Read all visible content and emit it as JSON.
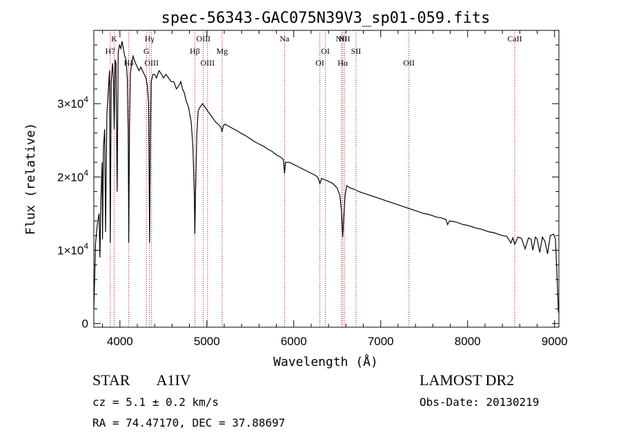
{
  "chart_data": {
    "type": "line",
    "title": "spec-56343-GAC075N39V3_sp01-059.fits",
    "xlabel": "Wavelength (Å)",
    "ylabel": "Flux (relative)",
    "xlim": [
      3700,
      9050
    ],
    "ylim": [
      -500,
      40000
    ],
    "xticks": [
      4000,
      5000,
      6000,
      7000,
      8000,
      9000
    ],
    "xtick_labels": [
      "4000",
      "5000",
      "6000",
      "7000",
      "8000",
      "9000"
    ],
    "yticks": [
      0,
      10000,
      20000,
      30000
    ],
    "ytick_labels": [
      {
        "mant": "0",
        "exp": ""
      },
      {
        "mant": "1×10",
        "exp": "4"
      },
      {
        "mant": "2×10",
        "exp": "4"
      },
      {
        "mant": "3×10",
        "exp": "4"
      }
    ],
    "grid": false,
    "line_color": "#000000",
    "marker_color": "#aa0000",
    "lines": [
      {
        "name": "H7",
        "x": 3889,
        "row": 1
      },
      {
        "name": "K",
        "x": 3934,
        "row": 0
      },
      {
        "name": "Hδ",
        "x": 4102,
        "row": 2
      },
      {
        "name": "Hγ",
        "x": 4341,
        "row": 0
      },
      {
        "name": "G",
        "x": 4305,
        "row": 1
      },
      {
        "name": "OIII",
        "x": 4364,
        "row": 2
      },
      {
        "name": "Hβ",
        "x": 4862,
        "row": 1
      },
      {
        "name": "OIII",
        "x": 4960,
        "row": 0
      },
      {
        "name": "OIII",
        "x": 5008,
        "row": 2
      },
      {
        "name": "Mg",
        "x": 5175,
        "row": 1
      },
      {
        "name": "Na",
        "x": 5894,
        "row": 0
      },
      {
        "name": "OI",
        "x": 6300,
        "row": 2
      },
      {
        "name": "OI",
        "x": 6364,
        "row": 1
      },
      {
        "name": "NII",
        "x": 6548,
        "row": 0
      },
      {
        "name": "Hα",
        "x": 6563,
        "row": 2
      },
      {
        "name": "NII",
        "x": 6583,
        "row": 0
      },
      {
        "name": "SII",
        "x": 6716,
        "row": 1
      },
      {
        "name": "OII",
        "x": 7325,
        "row": 2
      },
      {
        "name": "CaII",
        "x": 8542,
        "row": 0
      }
    ],
    "spectrum": [
      [
        3700,
        2000
      ],
      [
        3720,
        11000
      ],
      [
        3740,
        13500
      ],
      [
        3760,
        15000
      ],
      [
        3770,
        9000
      ],
      [
        3780,
        16500
      ],
      [
        3795,
        22000
      ],
      [
        3800,
        11500
      ],
      [
        3810,
        24000
      ],
      [
        3825,
        26500
      ],
      [
        3835,
        12500
      ],
      [
        3850,
        28500
      ],
      [
        3865,
        31500
      ],
      [
        3880,
        34500
      ],
      [
        3889,
        11000
      ],
      [
        3900,
        33000
      ],
      [
        3915,
        35500
      ],
      [
        3925,
        33500
      ],
      [
        3934,
        26500
      ],
      [
        3945,
        36000
      ],
      [
        3955,
        35500
      ],
      [
        3968,
        18000
      ],
      [
        3980,
        37000
      ],
      [
        3995,
        38000
      ],
      [
        4010,
        37500
      ],
      [
        4025,
        38500
      ],
      [
        4040,
        37500
      ],
      [
        4055,
        36500
      ],
      [
        4070,
        36000
      ],
      [
        4085,
        33500
      ],
      [
        4095,
        26000
      ],
      [
        4102,
        11000
      ],
      [
        4110,
        27000
      ],
      [
        4120,
        34000
      ],
      [
        4135,
        35500
      ],
      [
        4150,
        36500
      ],
      [
        4165,
        36000
      ],
      [
        4180,
        35500
      ],
      [
        4200,
        35000
      ],
      [
        4220,
        34500
      ],
      [
        4240,
        35000
      ],
      [
        4260,
        34500
      ],
      [
        4280,
        34000
      ],
      [
        4300,
        33500
      ],
      [
        4315,
        32500
      ],
      [
        4330,
        30000
      ],
      [
        4341,
        11000
      ],
      [
        4350,
        25000
      ],
      [
        4360,
        33000
      ],
      [
        4380,
        34000
      ],
      [
        4400,
        34000
      ],
      [
        4420,
        33500
      ],
      [
        4450,
        34500
      ],
      [
        4480,
        34000
      ],
      [
        4500,
        33500
      ],
      [
        4530,
        34000
      ],
      [
        4560,
        33500
      ],
      [
        4590,
        33000
      ],
      [
        4620,
        33000
      ],
      [
        4650,
        32000
      ],
      [
        4680,
        32500
      ],
      [
        4700,
        33000
      ],
      [
        4720,
        32000
      ],
      [
        4740,
        31500
      ],
      [
        4760,
        30500
      ],
      [
        4790,
        29500
      ],
      [
        4820,
        27500
      ],
      [
        4840,
        24000
      ],
      [
        4855,
        18000
      ],
      [
        4862,
        12200
      ],
      [
        4870,
        18000
      ],
      [
        4885,
        26000
      ],
      [
        4900,
        29000
      ],
      [
        4920,
        29500
      ],
      [
        4950,
        30000
      ],
      [
        4980,
        29500
      ],
      [
        5010,
        29000
      ],
      [
        5040,
        28500
      ],
      [
        5070,
        28000
      ],
      [
        5100,
        27500
      ],
      [
        5130,
        27200
      ],
      [
        5160,
        26800
      ],
      [
        5175,
        26200
      ],
      [
        5190,
        27000
      ],
      [
        5210,
        27200
      ],
      [
        5240,
        27000
      ],
      [
        5270,
        26800
      ],
      [
        5300,
        26600
      ],
      [
        5350,
        26300
      ],
      [
        5400,
        25900
      ],
      [
        5450,
        25600
      ],
      [
        5500,
        25200
      ],
      [
        5550,
        24800
      ],
      [
        5600,
        24500
      ],
      [
        5650,
        24200
      ],
      [
        5700,
        23800
      ],
      [
        5750,
        23500
      ],
      [
        5800,
        23000
      ],
      [
        5850,
        22700
      ],
      [
        5880,
        22400
      ],
      [
        5894,
        20500
      ],
      [
        5905,
        22000
      ],
      [
        5950,
        22000
      ],
      [
        6000,
        21700
      ],
      [
        6050,
        21400
      ],
      [
        6100,
        21100
      ],
      [
        6150,
        20800
      ],
      [
        6200,
        20500
      ],
      [
        6250,
        20200
      ],
      [
        6280,
        19900
      ],
      [
        6300,
        19100
      ],
      [
        6320,
        19800
      ],
      [
        6360,
        19600
      ],
      [
        6400,
        19400
      ],
      [
        6450,
        19100
      ],
      [
        6500,
        18500
      ],
      [
        6530,
        17500
      ],
      [
        6548,
        15500
      ],
      [
        6563,
        11800
      ],
      [
        6575,
        14500
      ],
      [
        6590,
        17500
      ],
      [
        6610,
        18800
      ],
      [
        6650,
        18500
      ],
      [
        6700,
        18300
      ],
      [
        6750,
        18000
      ],
      [
        6800,
        17800
      ],
      [
        6850,
        17600
      ],
      [
        6900,
        17400
      ],
      [
        6950,
        17200
      ],
      [
        7000,
        17000
      ],
      [
        7050,
        16800
      ],
      [
        7100,
        16600
      ],
      [
        7150,
        16400
      ],
      [
        7200,
        16200
      ],
      [
        7250,
        16000
      ],
      [
        7300,
        15800
      ],
      [
        7350,
        15600
      ],
      [
        7400,
        15400
      ],
      [
        7450,
        15200
      ],
      [
        7500,
        15000
      ],
      [
        7550,
        14900
      ],
      [
        7600,
        14700
      ],
      [
        7650,
        14500
      ],
      [
        7700,
        14400
      ],
      [
        7750,
        14200
      ],
      [
        7770,
        13500
      ],
      [
        7790,
        14000
      ],
      [
        7850,
        13900
      ],
      [
        7900,
        13700
      ],
      [
        7950,
        13500
      ],
      [
        8000,
        13400
      ],
      [
        8050,
        13200
      ],
      [
        8100,
        13000
      ],
      [
        8150,
        12900
      ],
      [
        8200,
        12700
      ],
      [
        8250,
        12500
      ],
      [
        8300,
        12400
      ],
      [
        8350,
        12200
      ],
      [
        8400,
        12000
      ],
      [
        8450,
        11900
      ],
      [
        8498,
        11000
      ],
      [
        8520,
        11700
      ],
      [
        8542,
        10800
      ],
      [
        8580,
        11800
      ],
      [
        8620,
        11600
      ],
      [
        8662,
        10200
      ],
      [
        8700,
        11700
      ],
      [
        8730,
        11500
      ],
      [
        8750,
        10000
      ],
      [
        8780,
        11800
      ],
      [
        8800,
        11500
      ],
      [
        8830,
        9700
      ],
      [
        8860,
        11800
      ],
      [
        8890,
        11200
      ],
      [
        8920,
        9500
      ],
      [
        8950,
        12000
      ],
      [
        8990,
        12200
      ],
      [
        9010,
        11500
      ],
      [
        9030,
        6000
      ],
      [
        9045,
        1500
      ]
    ]
  },
  "info": {
    "object_type": "STAR",
    "subclass": "A1IV",
    "survey": "LAMOST DR2",
    "cz": "cz = 5.1 ± 0.2 km/s",
    "obs_date": "Obs-Date: 20130219",
    "radec": "RA =  74.47170, DEC =  37.88697"
  }
}
